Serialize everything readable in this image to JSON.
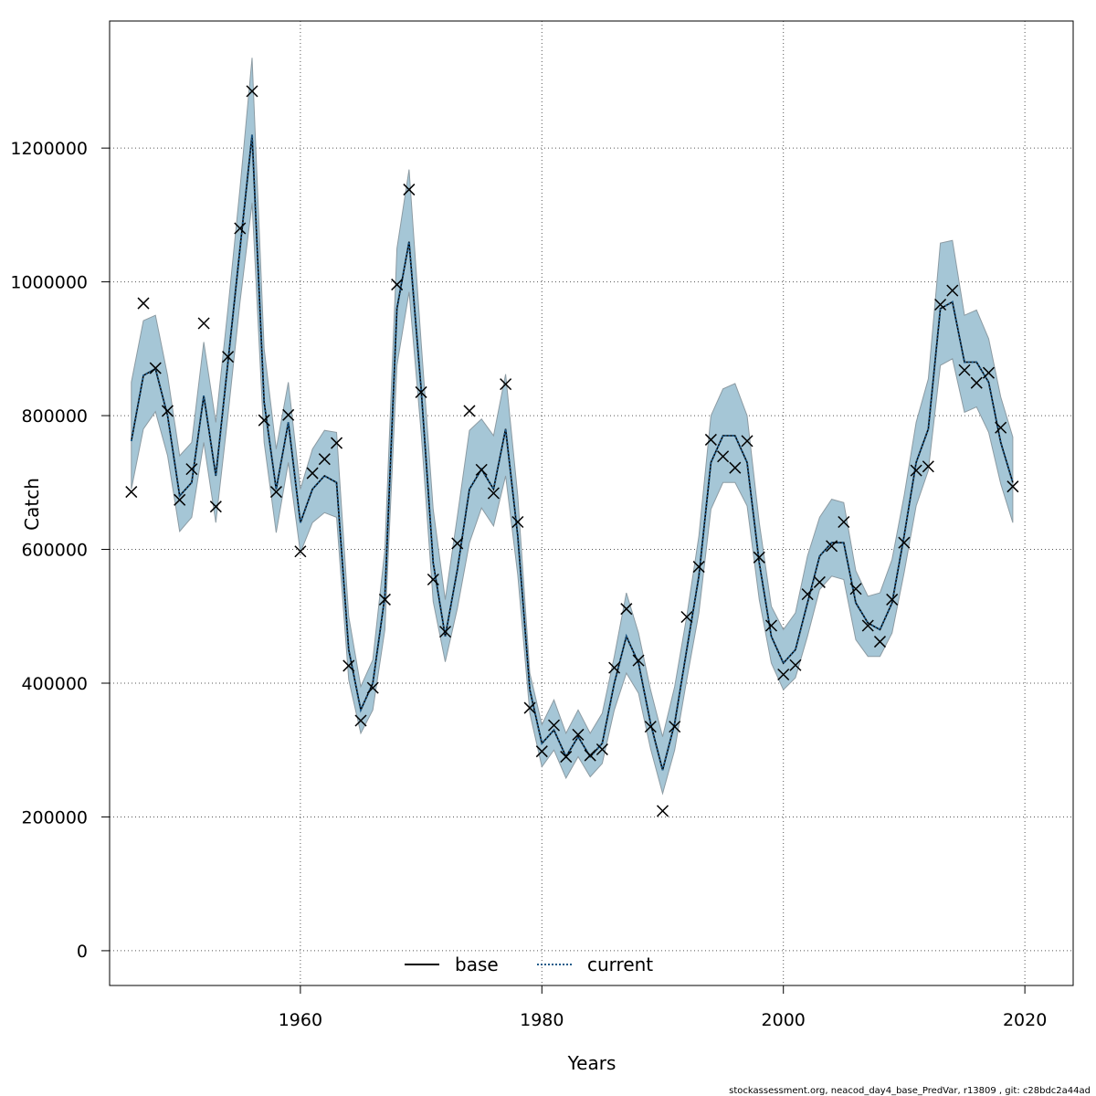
{
  "chart_data": {
    "type": "line",
    "xlabel": "Years",
    "ylabel": "Catch",
    "xlim": [
      1944.2,
      2024
    ],
    "ylim": [
      -52000,
      1390000
    ],
    "x_ticks": [
      1960,
      1980,
      2000,
      2020
    ],
    "y_ticks": [
      0,
      200000,
      400000,
      600000,
      800000,
      1000000,
      1200000
    ],
    "y_tick_labels": [
      "0",
      "200000",
      "400000",
      "600000",
      "800000",
      "1000000",
      "1200000"
    ],
    "grid": true,
    "legend_position": "bottom-center",
    "colors": {
      "band_fill": "#a5c6d6",
      "band_stroke": "#8c9ba3",
      "base_line": "#000000",
      "current_line": "#1f5b8a",
      "points": "#000000",
      "grid": "#555555"
    },
    "footer": "stockassessment.org, neacod_day4_base_PredVar, r13809 , git: c28bdc2a44ad",
    "legend": [
      {
        "name": "base",
        "style": "solid"
      },
      {
        "name": "current",
        "style": "dotted"
      }
    ],
    "x": [
      1946,
      1947,
      1948,
      1949,
      1950,
      1951,
      1952,
      1953,
      1954,
      1955,
      1956,
      1957,
      1958,
      1959,
      1960,
      1961,
      1962,
      1963,
      1964,
      1965,
      1966,
      1967,
      1968,
      1969,
      1970,
      1971,
      1972,
      1973,
      1974,
      1975,
      1976,
      1977,
      1978,
      1979,
      1980,
      1981,
      1982,
      1983,
      1984,
      1985,
      1986,
      1987,
      1988,
      1989,
      1990,
      1991,
      1992,
      1993,
      1994,
      1995,
      1996,
      1997,
      1998,
      1999,
      2000,
      2001,
      2002,
      2003,
      2004,
      2005,
      2006,
      2007,
      2008,
      2009,
      2010,
      2011,
      2012,
      2013,
      2014,
      2015,
      2016,
      2017,
      2018,
      2019
    ],
    "series": [
      {
        "name": "base",
        "values": [
          762000,
          860000,
          870000,
          800000,
          680000,
          700000,
          830000,
          710000,
          880000,
          1050000,
          1220000,
          820000,
          690000,
          790000,
          640000,
          690000,
          710000,
          700000,
          450000,
          360000,
          400000,
          530000,
          960000,
          1060000,
          840000,
          580000,
          470000,
          570000,
          690000,
          720000,
          690000,
          780000,
          620000,
          390000,
          310000,
          330000,
          290000,
          320000,
          290000,
          310000,
          400000,
          470000,
          430000,
          340000,
          270000,
          340000,
          450000,
          560000,
          730000,
          770000,
          770000,
          730000,
          580000,
          470000,
          430000,
          450000,
          520000,
          590000,
          610000,
          610000,
          520000,
          490000,
          480000,
          520000,
          620000,
          730000,
          780000,
          960000,
          970000,
          880000,
          880000,
          850000,
          760000,
          700000
        ]
      },
      {
        "name": "current",
        "values": [
          762000,
          860000,
          870000,
          800000,
          680000,
          700000,
          830000,
          710000,
          880000,
          1050000,
          1220000,
          820000,
          690000,
          790000,
          640000,
          690000,
          710000,
          700000,
          450000,
          360000,
          400000,
          530000,
          960000,
          1060000,
          840000,
          580000,
          470000,
          570000,
          690000,
          720000,
          690000,
          780000,
          620000,
          390000,
          310000,
          330000,
          290000,
          320000,
          290000,
          310000,
          400000,
          470000,
          430000,
          340000,
          270000,
          340000,
          450000,
          560000,
          730000,
          770000,
          770000,
          730000,
          580000,
          470000,
          430000,
          450000,
          520000,
          590000,
          610000,
          610000,
          520000,
          490000,
          480000,
          520000,
          620000,
          730000,
          780000,
          960000,
          970000,
          880000,
          880000,
          850000,
          760000,
          700000
        ]
      }
    ],
    "band_upper": [
      850000,
      942000,
      950000,
      860000,
      740000,
      760000,
      910000,
      790000,
      960000,
      1140000,
      1335000,
      900000,
      750000,
      850000,
      690000,
      750000,
      778000,
      775000,
      500000,
      395000,
      435000,
      600000,
      1050000,
      1168000,
      910000,
      660000,
      525000,
      650000,
      778000,
      795000,
      770000,
      862000,
      680000,
      415000,
      338000,
      375000,
      325000,
      360000,
      325000,
      355000,
      440000,
      535000,
      475000,
      390000,
      320000,
      395000,
      500000,
      620000,
      800000,
      840000,
      848000,
      800000,
      640000,
      515000,
      480000,
      505000,
      590000,
      648000,
      675000,
      670000,
      568000,
      530000,
      535000,
      585000,
      680000,
      790000,
      855000,
      1058000,
      1062000,
      950000,
      958000,
      915000,
      828000,
      768000
    ],
    "band_lower": [
      690000,
      780000,
      806000,
      740000,
      627000,
      648000,
      760000,
      640000,
      800000,
      970000,
      1118000,
      760000,
      625000,
      730000,
      595000,
      640000,
      655000,
      648000,
      405000,
      325000,
      360000,
      480000,
      875000,
      985000,
      775000,
      522000,
      432000,
      512000,
      610000,
      662000,
      635000,
      710000,
      562000,
      355000,
      275000,
      300000,
      258000,
      290000,
      260000,
      280000,
      360000,
      415000,
      385000,
      302000,
      235000,
      300000,
      405000,
      505000,
      660000,
      700000,
      700000,
      665000,
      525000,
      430000,
      390000,
      408000,
      470000,
      540000,
      560000,
      555000,
      465000,
      440000,
      440000,
      475000,
      565000,
      665000,
      718000,
      875000,
      885000,
      805000,
      813000,
      775000,
      698000,
      640000
    ],
    "observations": [
      686000,
      968000,
      871000,
      807000,
      674000,
      720000,
      938000,
      664000,
      888000,
      1080000,
      1285000,
      793000,
      686000,
      801000,
      597000,
      714000,
      735000,
      759000,
      426000,
      344000,
      393000,
      525000,
      996000,
      1138000,
      835000,
      555000,
      477000,
      609000,
      807000,
      719000,
      684000,
      847000,
      641000,
      363000,
      298000,
      337000,
      290000,
      323000,
      292000,
      301000,
      423000,
      511000,
      434000,
      335000,
      209000,
      335000,
      499000,
      574000,
      764000,
      739000,
      722000,
      762000,
      588000,
      486000,
      413000,
      427000,
      533000,
      551000,
      605000,
      641000,
      541000,
      486000,
      462000,
      525000,
      610000,
      718000,
      724000,
      966000,
      987000,
      868000,
      849000,
      864000,
      782000,
      694000
    ]
  }
}
